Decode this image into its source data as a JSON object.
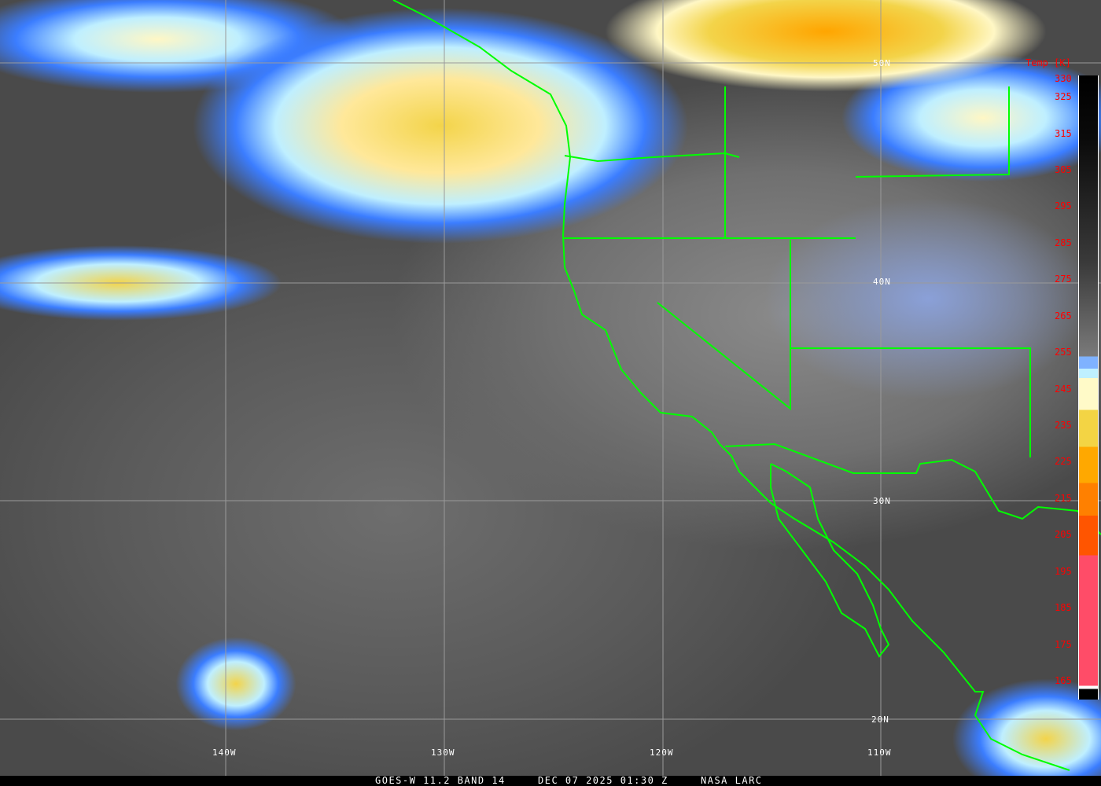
{
  "image": {
    "type": "satellite-infrared",
    "overlay": "state and coastline boundaries",
    "boundary_color": "#00ff00",
    "grid_color": "#9a9a9a"
  },
  "grid": {
    "latitudes": [
      "50N",
      "40N",
      "30N",
      "20N"
    ],
    "longitudes": [
      "140W",
      "130W",
      "120W",
      "110W"
    ]
  },
  "colorbar": {
    "title": "Temp [K]",
    "labels": [
      "330",
      "325",
      "315",
      "305",
      "295",
      "285",
      "275",
      "265",
      "255",
      "245",
      "235",
      "225",
      "215",
      "205",
      "195",
      "185",
      "175",
      "165"
    ],
    "segments": [
      {
        "from": 330,
        "to": 260,
        "color": "gradient #000000 to #a0a0a0"
      },
      {
        "from": 260,
        "to": 256,
        "color": "#3b7dff"
      },
      {
        "from": 256,
        "to": 254,
        "color": "#3b7dff"
      },
      {
        "from": 254,
        "to": 250,
        "color": "#7fb2ff"
      },
      {
        "from": 250,
        "to": 247,
        "color": "#bff0ff"
      },
      {
        "from": 247,
        "to": 238,
        "color": "#fffac8"
      },
      {
        "from": 238,
        "to": 228,
        "color": "#f3d444"
      },
      {
        "from": 228,
        "to": 218,
        "color": "#ffa800"
      },
      {
        "from": 218,
        "to": 210,
        "color": "#ff8000"
      },
      {
        "from": 210,
        "to": 199,
        "color": "#ff5500"
      },
      {
        "from": 199,
        "to": 163,
        "color": "#ff4c68"
      },
      {
        "from": 163,
        "to": 160,
        "color": "#000000"
      }
    ]
  },
  "footer": {
    "satellite": "GOES-W 11.2 BAND 14",
    "datetime": "DEC 07 2025 01:30 Z",
    "source": "NASA LARC"
  }
}
